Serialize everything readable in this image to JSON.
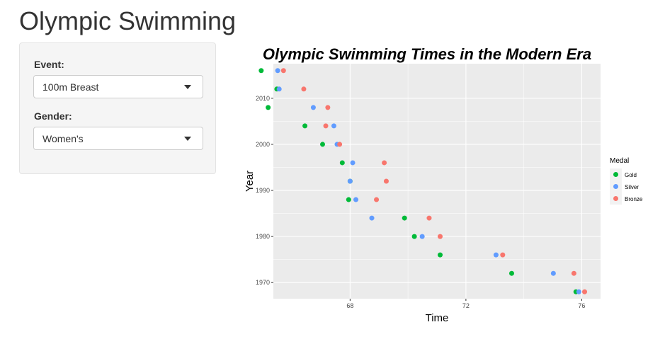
{
  "app": {
    "title": "Olympic Swimming"
  },
  "sidebar": {
    "event": {
      "label": "Event:",
      "value": "100m Breast"
    },
    "gender": {
      "label": "Gender:",
      "value": "Women's"
    }
  },
  "chart_data": {
    "type": "scatter",
    "title": "Olympic Swimming Times in the Modern Era",
    "xlabel": "Time",
    "ylabel": "Year",
    "xlim": [
      65.35,
      76.65
    ],
    "ylim": [
      1966.5,
      2017.5
    ],
    "x_ticks": [
      68,
      72,
      76
    ],
    "y_ticks": [
      1970,
      1980,
      1990,
      2000,
      2010
    ],
    "grid": true,
    "legend": {
      "title": "Medal",
      "position": "right"
    },
    "series": [
      {
        "name": "Gold",
        "color": "#00ba38",
        "points": [
          [
            1968,
            75.8
          ],
          [
            1972,
            73.58
          ],
          [
            1976,
            71.11
          ],
          [
            1980,
            70.22
          ],
          [
            1984,
            69.88
          ],
          [
            1988,
            67.95
          ],
          [
            1992,
            68.0
          ],
          [
            1996,
            67.73
          ],
          [
            2000,
            67.05
          ],
          [
            2004,
            66.44
          ],
          [
            2008,
            65.17
          ],
          [
            2012,
            65.47
          ],
          [
            2016,
            64.93
          ]
        ]
      },
      {
        "name": "Silver",
        "color": "#619cff",
        "points": [
          [
            1968,
            75.9
          ],
          [
            1972,
            75.02
          ],
          [
            1976,
            73.04
          ],
          [
            1980,
            70.49
          ],
          [
            1984,
            68.75
          ],
          [
            1988,
            68.2
          ],
          [
            1992,
            68.0
          ],
          [
            1996,
            68.09
          ],
          [
            2000,
            67.55
          ],
          [
            2004,
            67.44
          ],
          [
            2008,
            66.73
          ],
          [
            2012,
            65.55
          ],
          [
            2016,
            65.5
          ]
        ]
      },
      {
        "name": "Bronze",
        "color": "#f8766d",
        "points": [
          [
            1968,
            76.1
          ],
          [
            1972,
            75.73
          ],
          [
            1976,
            73.27
          ],
          [
            1980,
            71.11
          ],
          [
            1984,
            70.73
          ],
          [
            1988,
            68.91
          ],
          [
            1992,
            69.25
          ],
          [
            1996,
            69.18
          ],
          [
            2000,
            67.64
          ],
          [
            2004,
            67.16
          ],
          [
            2008,
            67.23
          ],
          [
            2012,
            66.4
          ],
          [
            2016,
            65.7
          ]
        ]
      }
    ]
  }
}
